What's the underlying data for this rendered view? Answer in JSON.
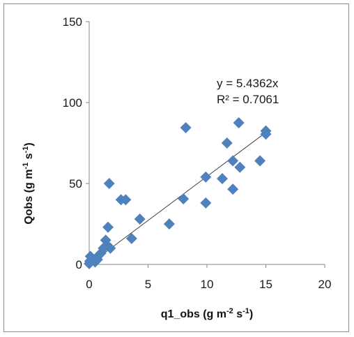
{
  "chart_data": {
    "type": "scatter",
    "xlabel": {
      "base": "q1_obs (g m",
      "sup1": "-2",
      "mid": " s",
      "sup2": "-1",
      "end": ")"
    },
    "ylabel": {
      "base": "Qobs (g m",
      "sup1": "-1",
      "mid": " s",
      "sup2": "-1",
      "end": ")"
    },
    "xlim": [
      0,
      20
    ],
    "ylim": [
      0,
      150
    ],
    "xticks": [
      0,
      5,
      10,
      15,
      20
    ],
    "yticks": [
      0,
      50,
      100,
      150
    ],
    "marker_color": "#4f81bd",
    "series": [
      {
        "points": [
          [
            0.0,
            0.5
          ],
          [
            0.05,
            2.0
          ],
          [
            0.1,
            5.0
          ],
          [
            0.5,
            1.5
          ],
          [
            0.7,
            3.0
          ],
          [
            0.8,
            5.5
          ],
          [
            1.0,
            7.0
          ],
          [
            1.2,
            10.0
          ],
          [
            1.4,
            15.0
          ],
          [
            1.5,
            12.0
          ],
          [
            1.6,
            23.0
          ],
          [
            1.7,
            50.0
          ],
          [
            1.8,
            10.0
          ],
          [
            2.7,
            40.0
          ],
          [
            3.1,
            40.0
          ],
          [
            3.6,
            16.0
          ],
          [
            4.3,
            28.0
          ],
          [
            6.8,
            25.0
          ],
          [
            8.0,
            40.5
          ],
          [
            8.2,
            84.5
          ],
          [
            9.9,
            54.0
          ],
          [
            9.9,
            38.0
          ],
          [
            11.3,
            53.0
          ],
          [
            11.7,
            75.0
          ],
          [
            12.2,
            64.0
          ],
          [
            12.2,
            46.5
          ],
          [
            12.7,
            87.5
          ],
          [
            12.8,
            60.0
          ],
          [
            14.5,
            64.0
          ],
          [
            15.0,
            82.5
          ],
          [
            15.0,
            80.5
          ]
        ]
      }
    ],
    "trendline": {
      "slope": 5.4362,
      "x_range": [
        0,
        15
      ]
    },
    "annotations": {
      "equation": "y = 5.4362x",
      "r2": "R² = 0.7061"
    }
  }
}
